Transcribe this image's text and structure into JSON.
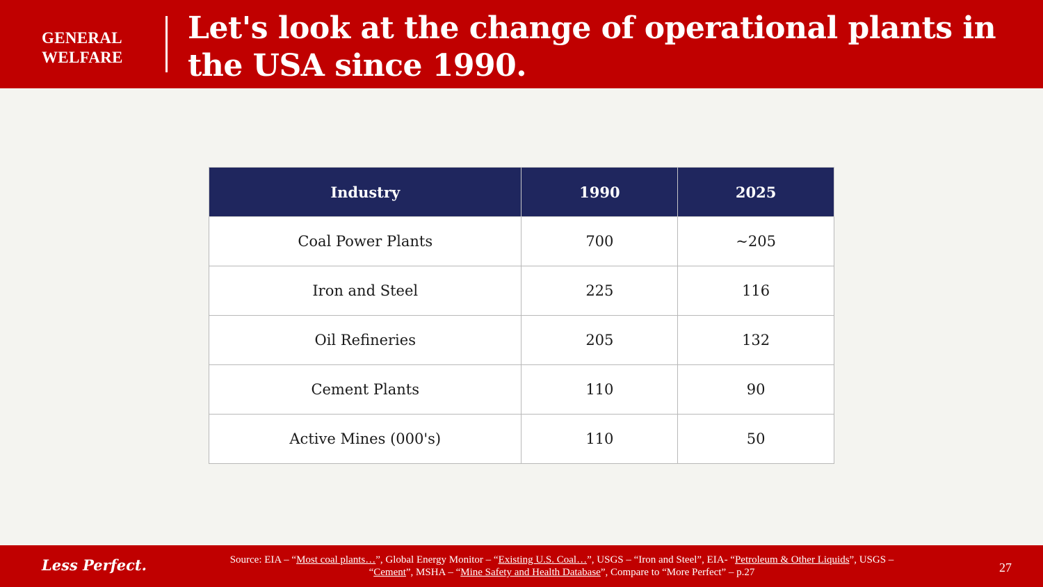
{
  "header": {
    "section_label": "GENERAL\nWELFARE",
    "title": "Let's look at the change of operational plants in the USA since 1990."
  },
  "table": {
    "columns": [
      "Industry",
      "1990",
      "2025"
    ],
    "rows": [
      [
        "Coal Power Plants",
        "700",
        "~205"
      ],
      [
        "Iron and Steel",
        "225",
        "116"
      ],
      [
        "Oil Refineries",
        "205",
        "132"
      ],
      [
        "Cement Plants",
        "110",
        "90"
      ],
      [
        "Active Mines (000's)",
        "110",
        "50"
      ]
    ]
  },
  "footer": {
    "brand": "Less Perfect.",
    "source": {
      "t0": "Source: EIA – “",
      "l0": "Most coal plants…",
      "t1": "”, Global Energy Monitor – “",
      "l1": "Existing U.S. Coal…",
      "t2": "”, USGS – “Iron and Steel”, EIA- “",
      "l2": "Petroleum & Other Liquids",
      "t3": "”,  USGS – “",
      "l3": "Cement",
      "t4": "”, MSHA – “",
      "l4": "Mine Safety and Health Database",
      "t5": "”, Compare to “More Perfect”  – p.27"
    },
    "page_number": "27"
  },
  "colors": {
    "header_red": "#c00000",
    "table_header_navy": "#1f265e",
    "background": "#f4f4f0"
  }
}
